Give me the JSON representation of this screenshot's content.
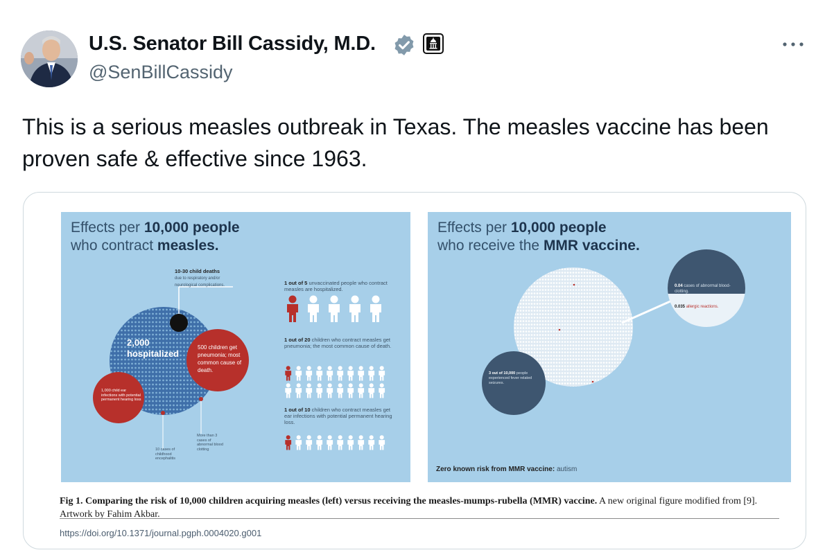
{
  "author": {
    "name": "U.S. Senator Bill Cassidy, M.D.",
    "handle": "@SenBillCassidy",
    "avatar_icon": "profile-photo",
    "verified_icon": "verified-badge-icon",
    "affiliation_icon": "government-badge-icon"
  },
  "tweet": {
    "text": "This is a serious measles outbreak in Texas. The measles vaccine has been proven safe & effective since 1963."
  },
  "figure": {
    "left": {
      "title_prefix": "Effects per",
      "title_bold": "10,000 people",
      "title_line2_prefix": "who contract",
      "title_line2_bold": "measles.",
      "hospitalized": "2,000 hospitalized",
      "deaths_head": "10-30 child deaths",
      "deaths_sub": "due to respiratory and/or neurological complications.",
      "pneumonia": "500 children get pneumonia; most common cause of death.",
      "ear": "1,000 child ear infections with potential permanent hearing loss",
      "encephalitis": "10 cases of childhood encephalitis",
      "clotting": "More than 3 cases of abnormal blood clotting",
      "stat1_bold": "1 out of 5",
      "stat1_text": "unvaccinated people who contract measles are hospitalized.",
      "stat2_bold": "1 out of 20",
      "stat2_text": "children who contract measles get pneumonia; the most common cause of death.",
      "stat3_bold": "1 out of 10",
      "stat3_text": "children who contract measles get ear infections with potential permanent hearing loss."
    },
    "right": {
      "title_prefix": "Effects per",
      "title_bold": "10,000 people",
      "title_line2_prefix": "who receive the",
      "title_line2_bold": "MMR vaccine.",
      "clotting_bold": "0.04",
      "clotting_text": "cases of abnormal blood-clotting.",
      "allergic_bold": "0.035",
      "allergic_text": "allergic reactions.",
      "seizure_bold": "3 out of 10,000",
      "seizure_text": "people experienced fever related seizures.",
      "zero_bold": "Zero known risk from MMR vaccine:",
      "zero_text": "autism"
    },
    "caption_label": "Fig 1.",
    "caption_bold": "Comparing the risk of 10,000 children acquiring measles (left) versus receiving the measles-mumps-rubella (MMR) vaccine.",
    "caption_text": "A new original figure modified from [9]. Artwork by Fahim Akbar.",
    "doi": "https://doi.org/10.1371/journal.pgph.0004020.g001"
  },
  "colors": {
    "panel_bg": "#a7cfe9",
    "measles_red": "#b7302b",
    "vaccine_navy": "#3e5670",
    "link": "#4a5c6e"
  }
}
